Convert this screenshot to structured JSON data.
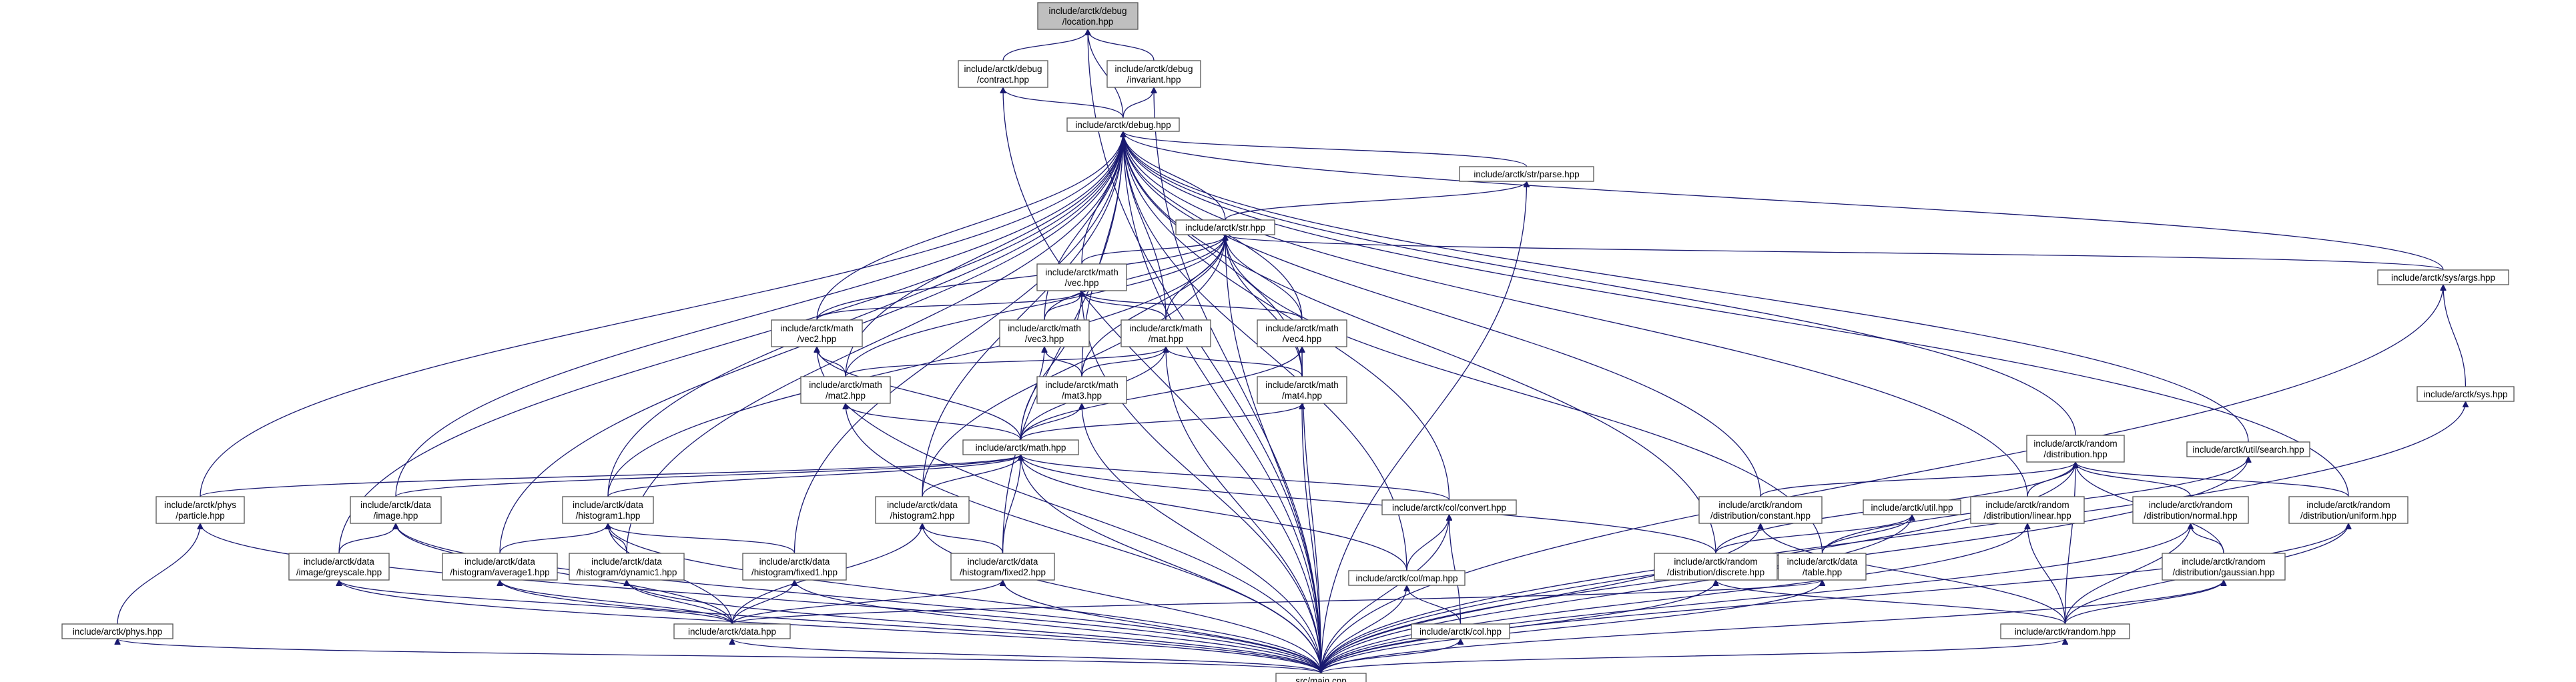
{
  "nodes": [
    {
      "id": "debug_location",
      "label": [
        "include/arctk/debug",
        "/location.hpp"
      ],
      "root": true
    },
    {
      "id": "debug_contract",
      "label": [
        "include/arctk/debug",
        "/contract.hpp"
      ]
    },
    {
      "id": "debug_invariant",
      "label": [
        "include/arctk/debug",
        "/invariant.hpp"
      ]
    },
    {
      "id": "debug",
      "label": [
        "include/arctk/debug.hpp"
      ]
    },
    {
      "id": "str_parse",
      "label": [
        "include/arctk/str/parse.hpp"
      ]
    },
    {
      "id": "str",
      "label": [
        "include/arctk/str.hpp"
      ]
    },
    {
      "id": "math_vec",
      "label": [
        "include/arctk/math",
        "/vec.hpp"
      ]
    },
    {
      "id": "sys_args",
      "label": [
        "include/arctk/sys/args.hpp"
      ]
    },
    {
      "id": "math_vec2",
      "label": [
        "include/arctk/math",
        "/vec2.hpp"
      ]
    },
    {
      "id": "math_vec3",
      "label": [
        "include/arctk/math",
        "/vec3.hpp"
      ]
    },
    {
      "id": "math_mat",
      "label": [
        "include/arctk/math",
        "/mat.hpp"
      ]
    },
    {
      "id": "math_vec4",
      "label": [
        "include/arctk/math",
        "/vec4.hpp"
      ]
    },
    {
      "id": "math_mat2",
      "label": [
        "include/arctk/math",
        "/mat2.hpp"
      ]
    },
    {
      "id": "math_mat3",
      "label": [
        "include/arctk/math",
        "/mat3.hpp"
      ]
    },
    {
      "id": "math_mat4",
      "label": [
        "include/arctk/math",
        "/mat4.hpp"
      ]
    },
    {
      "id": "sys",
      "label": [
        "include/arctk/sys.hpp"
      ]
    },
    {
      "id": "math",
      "label": [
        "include/arctk/math.hpp"
      ]
    },
    {
      "id": "random_distribution",
      "label": [
        "include/arctk/random",
        "/distribution.hpp"
      ]
    },
    {
      "id": "util_search",
      "label": [
        "include/arctk/util/search.hpp"
      ]
    },
    {
      "id": "phys_particle",
      "label": [
        "include/arctk/phys",
        "/particle.hpp"
      ]
    },
    {
      "id": "data_image",
      "label": [
        "include/arctk/data",
        "/image.hpp"
      ]
    },
    {
      "id": "data_histogram1",
      "label": [
        "include/arctk/data",
        "/histogram1.hpp"
      ]
    },
    {
      "id": "data_histogram2",
      "label": [
        "include/arctk/data",
        "/histogram2.hpp"
      ]
    },
    {
      "id": "col_convert",
      "label": [
        "include/arctk/col/convert.hpp"
      ]
    },
    {
      "id": "random_dist_constant",
      "label": [
        "include/arctk/random",
        "/distribution/constant.hpp"
      ]
    },
    {
      "id": "util",
      "label": [
        "include/arctk/util.hpp"
      ]
    },
    {
      "id": "random_dist_linear",
      "label": [
        "include/arctk/random",
        "/distribution/linear.hpp"
      ]
    },
    {
      "id": "random_dist_normal",
      "label": [
        "include/arctk/random",
        "/distribution/normal.hpp"
      ]
    },
    {
      "id": "random_dist_uniform",
      "label": [
        "include/arctk/random",
        "/distribution/uniform.hpp"
      ]
    },
    {
      "id": "data_image_greyscale",
      "label": [
        "include/arctk/data",
        "/image/greyscale.hpp"
      ]
    },
    {
      "id": "data_histogram_average1",
      "label": [
        "include/arctk/data",
        "/histogram/average1.hpp"
      ]
    },
    {
      "id": "data_histogram_dynamic1",
      "label": [
        "include/arctk/data",
        "/histogram/dynamic1.hpp"
      ]
    },
    {
      "id": "data_histogram_fixed1",
      "label": [
        "include/arctk/data",
        "/histogram/fixed1.hpp"
      ]
    },
    {
      "id": "data_histogram_fixed2",
      "label": [
        "include/arctk/data",
        "/histogram/fixed2.hpp"
      ]
    },
    {
      "id": "col_map",
      "label": [
        "include/arctk/col/map.hpp"
      ]
    },
    {
      "id": "random_dist_discrete",
      "label": [
        "include/arctk/random",
        "/distribution/discrete.hpp"
      ]
    },
    {
      "id": "data_table",
      "label": [
        "include/arctk/data",
        "/table.hpp"
      ]
    },
    {
      "id": "random_dist_gaussian",
      "label": [
        "include/arctk/random",
        "/distribution/gaussian.hpp"
      ]
    },
    {
      "id": "phys",
      "label": [
        "include/arctk/phys.hpp"
      ]
    },
    {
      "id": "data",
      "label": [
        "include/arctk/data.hpp"
      ]
    },
    {
      "id": "col",
      "label": [
        "include/arctk/col.hpp"
      ]
    },
    {
      "id": "random",
      "label": [
        "include/arctk/random.hpp"
      ]
    },
    {
      "id": "main",
      "label": [
        "src/main.cpp"
      ]
    }
  ],
  "edges": [
    [
      "debug_location",
      "debug_contract"
    ],
    [
      "debug_location",
      "debug_invariant"
    ],
    [
      "debug_location",
      "debug"
    ],
    [
      "debug_location",
      "main"
    ],
    [
      "debug_contract",
      "debug"
    ],
    [
      "debug_contract",
      "main"
    ],
    [
      "debug_invariant",
      "debug"
    ],
    [
      "debug_invariant",
      "main"
    ],
    [
      "debug",
      "str_parse"
    ],
    [
      "debug",
      "str"
    ],
    [
      "debug",
      "math_vec"
    ],
    [
      "debug",
      "math_vec2"
    ],
    [
      "debug",
      "math_vec3"
    ],
    [
      "debug",
      "math_mat"
    ],
    [
      "debug",
      "math_vec4"
    ],
    [
      "debug",
      "math_mat2"
    ],
    [
      "debug",
      "math_mat3"
    ],
    [
      "debug",
      "math_mat4"
    ],
    [
      "debug",
      "sys_args"
    ],
    [
      "debug",
      "random_distribution"
    ],
    [
      "debug",
      "util_search"
    ],
    [
      "debug",
      "phys_particle"
    ],
    [
      "debug",
      "data_image"
    ],
    [
      "debug",
      "data_histogram1"
    ],
    [
      "debug",
      "data_histogram2"
    ],
    [
      "debug",
      "col_convert"
    ],
    [
      "debug",
      "random_dist_constant"
    ],
    [
      "debug",
      "random_dist_linear"
    ],
    [
      "debug",
      "random_dist_uniform"
    ],
    [
      "debug",
      "data_image_greyscale"
    ],
    [
      "debug",
      "data_histogram_average1"
    ],
    [
      "debug",
      "data_histogram_dynamic1"
    ],
    [
      "debug",
      "data_histogram_fixed1"
    ],
    [
      "debug",
      "data_histogram_fixed2"
    ],
    [
      "debug",
      "col_map"
    ],
    [
      "debug",
      "random_dist_discrete"
    ],
    [
      "debug",
      "main"
    ],
    [
      "str_parse",
      "str"
    ],
    [
      "str_parse",
      "main"
    ],
    [
      "str",
      "math_vec"
    ],
    [
      "str",
      "math_vec2"
    ],
    [
      "str",
      "math_vec3"
    ],
    [
      "str",
      "math_mat"
    ],
    [
      "str",
      "math_vec4"
    ],
    [
      "str",
      "math_mat2"
    ],
    [
      "str",
      "math_mat3"
    ],
    [
      "str",
      "math_mat4"
    ],
    [
      "str",
      "sys_args"
    ],
    [
      "str",
      "data_histogram1"
    ],
    [
      "str",
      "data_histogram2"
    ],
    [
      "str",
      "data_table"
    ],
    [
      "str",
      "main"
    ],
    [
      "math_vec",
      "math_vec2"
    ],
    [
      "math_vec",
      "math_vec3"
    ],
    [
      "math_vec",
      "math_mat"
    ],
    [
      "math_vec",
      "math_vec4"
    ],
    [
      "math_vec",
      "math"
    ],
    [
      "math_vec",
      "main"
    ],
    [
      "sys_args",
      "sys"
    ],
    [
      "sys_args",
      "main"
    ],
    [
      "math_vec2",
      "math_mat2"
    ],
    [
      "math_vec2",
      "math"
    ],
    [
      "math_vec2",
      "main"
    ],
    [
      "math_vec3",
      "math_mat3"
    ],
    [
      "math_vec3",
      "math"
    ],
    [
      "math_mat",
      "math_mat2"
    ],
    [
      "math_mat",
      "math_mat3"
    ],
    [
      "math_mat",
      "math_mat4"
    ],
    [
      "math_mat",
      "math"
    ],
    [
      "math_mat",
      "main"
    ],
    [
      "math_vec4",
      "math_mat4"
    ],
    [
      "math_vec4",
      "math"
    ],
    [
      "math_vec4",
      "main"
    ],
    [
      "math_mat2",
      "math"
    ],
    [
      "math_mat2",
      "main"
    ],
    [
      "math_mat3",
      "math"
    ],
    [
      "math_mat3",
      "main"
    ],
    [
      "math_mat4",
      "math"
    ],
    [
      "math_mat4",
      "main"
    ],
    [
      "sys",
      "main"
    ],
    [
      "math",
      "phys_particle"
    ],
    [
      "math",
      "data_image"
    ],
    [
      "math",
      "data_histogram1"
    ],
    [
      "math",
      "data_histogram2"
    ],
    [
      "math",
      "col_convert"
    ],
    [
      "math",
      "random_dist_discrete"
    ],
    [
      "math",
      "data_histogram_fixed2"
    ],
    [
      "math",
      "col_map"
    ],
    [
      "math",
      "main"
    ],
    [
      "random_distribution",
      "random_dist_constant"
    ],
    [
      "random_distribution",
      "random_dist_linear"
    ],
    [
      "random_distribution",
      "random_dist_normal"
    ],
    [
      "random_distribution",
      "random_dist_uniform"
    ],
    [
      "random_distribution",
      "random_dist_discrete"
    ],
    [
      "random_distribution",
      "random_dist_gaussian"
    ],
    [
      "random_distribution",
      "random"
    ],
    [
      "random_distribution",
      "main"
    ],
    [
      "util_search",
      "data_table"
    ],
    [
      "util_search",
      "main"
    ],
    [
      "phys_particle",
      "phys"
    ],
    [
      "phys_particle",
      "main"
    ],
    [
      "data_image",
      "data_image_greyscale"
    ],
    [
      "data_image",
      "data"
    ],
    [
      "data_image",
      "main"
    ],
    [
      "data_histogram1",
      "data_histogram_average1"
    ],
    [
      "data_histogram1",
      "data_histogram_dynamic1"
    ],
    [
      "data_histogram1",
      "data_histogram_fixed1"
    ],
    [
      "data_histogram1",
      "data"
    ],
    [
      "data_histogram1",
      "main"
    ],
    [
      "data_histogram2",
      "data_histogram_fixed2"
    ],
    [
      "data_histogram2",
      "data"
    ],
    [
      "data_histogram2",
      "main"
    ],
    [
      "col_convert",
      "col_map"
    ],
    [
      "col_convert",
      "col"
    ],
    [
      "col_convert",
      "main"
    ],
    [
      "random_dist_constant",
      "random"
    ],
    [
      "random_dist_constant",
      "main"
    ],
    [
      "util",
      "random_dist_discrete"
    ],
    [
      "util",
      "data_table"
    ],
    [
      "util",
      "main"
    ],
    [
      "random_dist_linear",
      "random"
    ],
    [
      "random_dist_linear",
      "main"
    ],
    [
      "random_dist_normal",
      "random_dist_gaussian"
    ],
    [
      "random_dist_normal",
      "random"
    ],
    [
      "random_dist_normal",
      "main"
    ],
    [
      "random_dist_uniform",
      "random"
    ],
    [
      "random_dist_uniform",
      "main"
    ],
    [
      "data_image_greyscale",
      "data"
    ],
    [
      "data_image_greyscale",
      "main"
    ],
    [
      "data_histogram_average1",
      "data"
    ],
    [
      "data_histogram_average1",
      "main"
    ],
    [
      "data_histogram_dynamic1",
      "data"
    ],
    [
      "data_histogram_dynamic1",
      "main"
    ],
    [
      "data_histogram_fixed1",
      "data"
    ],
    [
      "data_histogram_fixed1",
      "main"
    ],
    [
      "data_histogram_fixed2",
      "data"
    ],
    [
      "data_histogram_fixed2",
      "main"
    ],
    [
      "col_map",
      "col"
    ],
    [
      "col_map",
      "main"
    ],
    [
      "random_dist_discrete",
      "random"
    ],
    [
      "random_dist_discrete",
      "main"
    ],
    [
      "data_table",
      "data"
    ],
    [
      "data_table",
      "main"
    ],
    [
      "random_dist_gaussian",
      "random"
    ],
    [
      "random_dist_gaussian",
      "main"
    ],
    [
      "phys",
      "main"
    ],
    [
      "data",
      "main"
    ],
    [
      "col",
      "main"
    ],
    [
      "random",
      "main"
    ]
  ],
  "colors": {
    "edge": "#191970",
    "node_border": "#555555",
    "root_fill": "#bfbfbf",
    "node_fill": "#ffffff"
  }
}
